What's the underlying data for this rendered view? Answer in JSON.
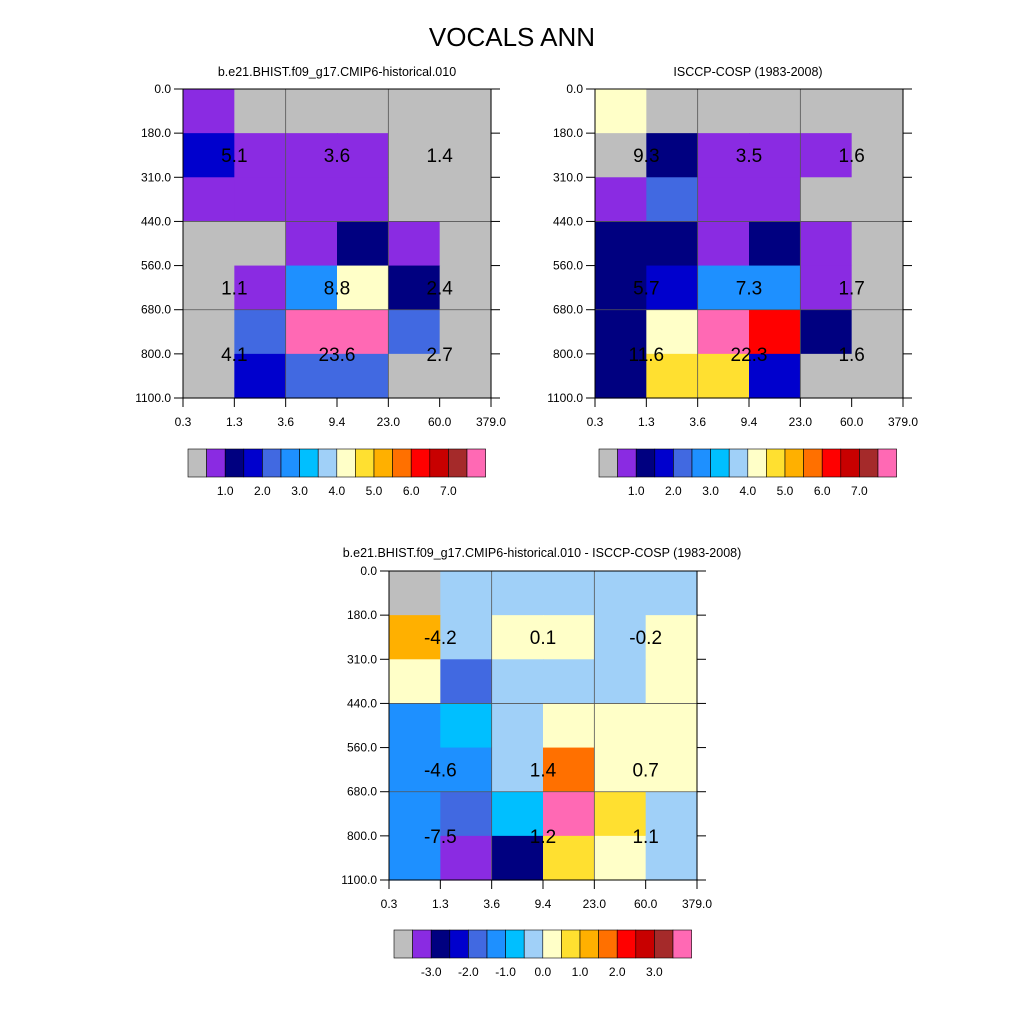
{
  "title": "VOCALS ANN",
  "palette": {
    "colors": [
      "#bebebe",
      "#8a2be2",
      "#000080",
      "#0000cd",
      "#4169e1",
      "#1e90ff",
      "#00bfff",
      "#a0d0f8",
      "#ffffc8",
      "#ffe030",
      "#ffb000",
      "#ff7000",
      "#ff0000",
      "#c80000",
      "#a52a2a",
      "#ff69b4"
    ],
    "tick_labels_abs": [
      "1.0",
      "2.0",
      "3.0",
      "4.0",
      "5.0",
      "6.0",
      "7.0"
    ],
    "tick_labels_diff": [
      "-3.0",
      "-2.0",
      "-1.0",
      "0.0",
      "1.0",
      "2.0",
      "3.0"
    ]
  },
  "chart_data": [
    {
      "type": "heatmap",
      "title": "b.e21.BHIST.f09_g17.CMIP6-historical.010",
      "x_ticks": [
        "0.3",
        "1.3",
        "3.6",
        "9.4",
        "23.0",
        "60.0",
        "379.0"
      ],
      "y_ticks": [
        "0.0",
        "180.0",
        "310.0",
        "440.0",
        "560.0",
        "680.0",
        "800.0",
        "1100.0"
      ],
      "grid_colors": [
        [
          1,
          0,
          0,
          0,
          0,
          0
        ],
        [
          3,
          1,
          1,
          1,
          0,
          0
        ],
        [
          1,
          1,
          1,
          1,
          0,
          0
        ],
        [
          0,
          0,
          1,
          2,
          1,
          0
        ],
        [
          0,
          1,
          5,
          8,
          2,
          0
        ],
        [
          0,
          4,
          15,
          15,
          4,
          0
        ],
        [
          0,
          3,
          4,
          4,
          0,
          0
        ]
      ],
      "section_values": [
        [
          "5.1",
          "3.6",
          "1.4"
        ],
        [
          "1.1",
          "8.8",
          "2.4"
        ],
        [
          "4.1",
          "23.6",
          "2.7"
        ]
      ],
      "colorbar_ticks": [
        "1.0",
        "2.0",
        "3.0",
        "4.0",
        "5.0",
        "6.0",
        "7.0"
      ]
    },
    {
      "type": "heatmap",
      "title": "ISCCP-COSP (1983-2008)",
      "x_ticks": [
        "0.3",
        "1.3",
        "3.6",
        "9.4",
        "23.0",
        "60.0",
        "379.0"
      ],
      "y_ticks": [
        "0.0",
        "180.0",
        "310.0",
        "440.0",
        "560.0",
        "680.0",
        "800.0",
        "1100.0"
      ],
      "grid_colors": [
        [
          8,
          0,
          0,
          0,
          0,
          0
        ],
        [
          0,
          2,
          1,
          1,
          1,
          0
        ],
        [
          1,
          4,
          1,
          1,
          0,
          0
        ],
        [
          2,
          2,
          1,
          2,
          1,
          0
        ],
        [
          2,
          3,
          5,
          5,
          1,
          0
        ],
        [
          2,
          8,
          15,
          12,
          2,
          0
        ],
        [
          2,
          9,
          9,
          3,
          0,
          0
        ]
      ],
      "section_values": [
        [
          "9.3",
          "3.5",
          "1.6"
        ],
        [
          "5.7",
          "7.3",
          "1.7"
        ],
        [
          "11.6",
          "22.3",
          "1.6"
        ]
      ],
      "colorbar_ticks": [
        "1.0",
        "2.0",
        "3.0",
        "4.0",
        "5.0",
        "6.0",
        "7.0"
      ]
    },
    {
      "type": "heatmap",
      "title": "b.e21.BHIST.f09_g17.CMIP6-historical.010 - ISCCP-COSP (1983-2008)",
      "x_ticks": [
        "0.3",
        "1.3",
        "3.6",
        "9.4",
        "23.0",
        "60.0",
        "379.0"
      ],
      "y_ticks": [
        "0.0",
        "180.0",
        "310.0",
        "440.0",
        "560.0",
        "680.0",
        "800.0",
        "1100.0"
      ],
      "grid_colors": [
        [
          0,
          7,
          7,
          7,
          7,
          7
        ],
        [
          10,
          7,
          8,
          8,
          7,
          8
        ],
        [
          8,
          4,
          7,
          7,
          7,
          8
        ],
        [
          5,
          6,
          7,
          8,
          8,
          8
        ],
        [
          5,
          5,
          7,
          11,
          8,
          8
        ],
        [
          5,
          4,
          6,
          15,
          9,
          7
        ],
        [
          5,
          1,
          2,
          9,
          8,
          7
        ]
      ],
      "section_values": [
        [
          "-4.2",
          "0.1",
          "-0.2"
        ],
        [
          "-4.6",
          "1.4",
          "0.7"
        ],
        [
          "-7.5",
          "1.2",
          "1.1"
        ]
      ],
      "colorbar_ticks": [
        "-3.0",
        "-2.0",
        "-1.0",
        "0.0",
        "1.0",
        "2.0",
        "3.0"
      ]
    }
  ]
}
